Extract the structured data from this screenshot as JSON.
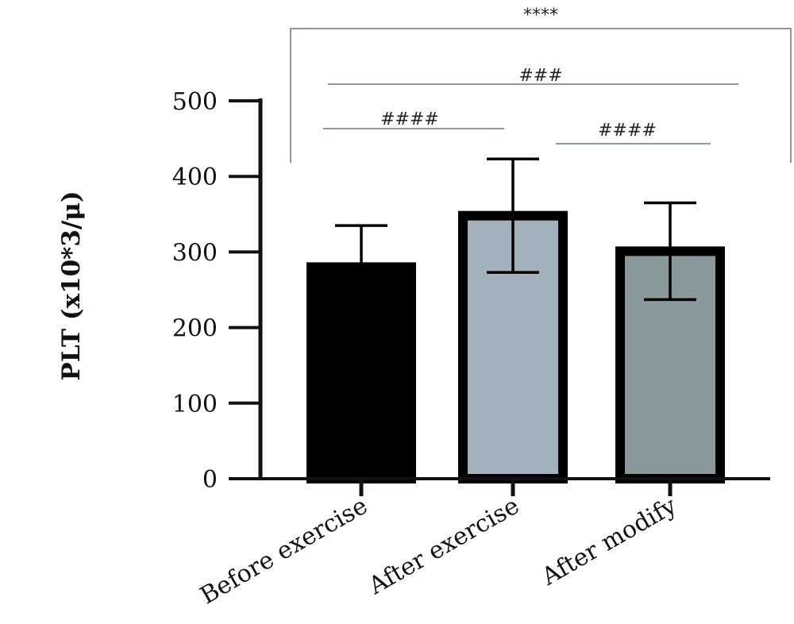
{
  "chart_data": {
    "type": "bar",
    "ylabel": "PLT (x10*3/μ)",
    "ylim": [
      0,
      500
    ],
    "yticks": [
      0,
      100,
      200,
      300,
      400,
      500
    ],
    "categories": [
      "Before exercise",
      "After exercise",
      "After modify"
    ],
    "values": [
      280,
      348,
      301
    ],
    "errors": [
      55,
      75,
      64
    ],
    "colors": [
      "#000000",
      "#a3b1bd",
      "#87999a"
    ],
    "annotations": [
      {
        "label": "****",
        "from": "Before exercise",
        "to": "After modify",
        "style": "bracket"
      },
      {
        "label": "###",
        "from": "Before exercise",
        "to": "After modify",
        "style": "line"
      },
      {
        "label": "####",
        "from": "Before exercise",
        "to": "After exercise",
        "style": "line"
      },
      {
        "label": "####",
        "from": "After exercise",
        "to": "After modify",
        "style": "line"
      }
    ]
  }
}
